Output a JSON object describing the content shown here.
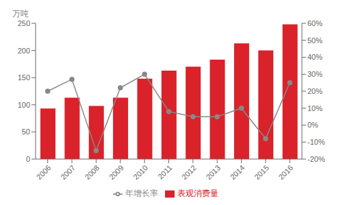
{
  "chart_data": {
    "type": "bar",
    "categories": [
      "2006",
      "2007",
      "2008",
      "2009",
      "2010",
      "2011",
      "2012",
      "2013",
      "2014",
      "2015",
      "2016"
    ],
    "series": [
      {
        "name": "表观消费量",
        "type": "bar",
        "color": "#d9222a",
        "values": [
          93,
          113,
          98,
          113,
          148,
          163,
          170,
          183,
          213,
          200,
          248
        ]
      },
      {
        "name": "年增长率",
        "type": "line",
        "color": "#888888",
        "axis": "y2",
        "marker": "circle",
        "values": [
          0.2,
          0.27,
          -0.15,
          0.22,
          0.3,
          0.08,
          0.05,
          0.05,
          0.1,
          -0.08,
          0.25
        ]
      }
    ],
    "ylabel": "万吨",
    "ylim": [
      0,
      250
    ],
    "yticks": [
      0,
      50,
      100,
      150,
      200,
      250
    ],
    "y2lim": [
      -0.2,
      0.6
    ],
    "y2ticks": [
      {
        "value": -0.2,
        "label": "-20%"
      },
      {
        "value": -0.1,
        "label": "-10%"
      },
      {
        "value": 0.0,
        "label": "0%"
      },
      {
        "value": 0.1,
        "label": "10%"
      },
      {
        "value": 0.2,
        "label": "20%"
      },
      {
        "value": 0.3,
        "label": "30%"
      },
      {
        "value": 0.4,
        "label": "40%"
      },
      {
        "value": 0.5,
        "label": "50%"
      },
      {
        "value": 0.6,
        "label": "60%"
      }
    ],
    "grid": false,
    "legend": "bottom"
  }
}
